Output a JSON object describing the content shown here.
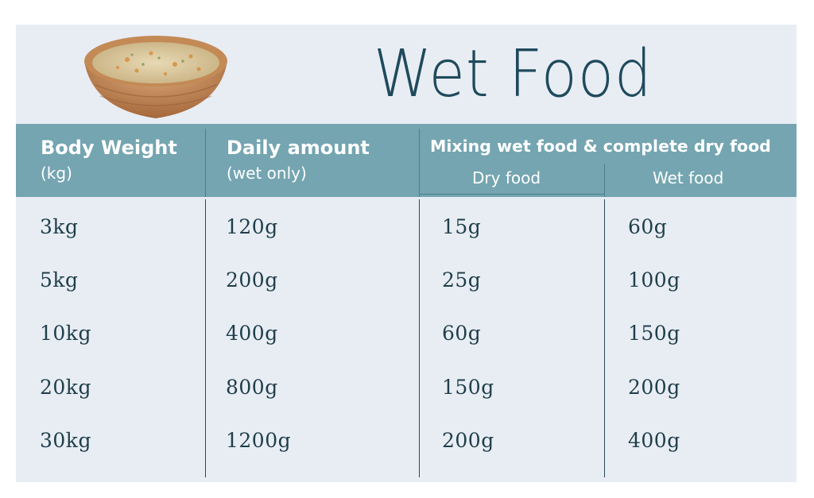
{
  "title": "Wet Food",
  "header": {
    "col1_title": "Body Weight",
    "col1_sub": "(kg)",
    "col2_title": "Daily amount",
    "col2_sub": "(wet only)",
    "mix_title": "Mixing wet food & complete dry food",
    "mix_sub1": "Dry food",
    "mix_sub2": "Wet food"
  },
  "rows": [
    {
      "weight": "3kg",
      "daily": "120g",
      "dry": "15g",
      "wet": "60g"
    },
    {
      "weight": "5kg",
      "daily": "200g",
      "dry": "25g",
      "wet": "100g"
    },
    {
      "weight": "10kg",
      "daily": "400g",
      "dry": "60g",
      "wet": "150g"
    },
    {
      "weight": "20kg",
      "daily": "800g",
      "dry": "150g",
      "wet": "200g"
    },
    {
      "weight": "30kg",
      "daily": "1200g",
      "dry": "200g",
      "wet": "400g"
    }
  ],
  "colors": {
    "header_bg": "#74a5b1",
    "card_bg": "#e8edf4",
    "title": "#1f4a5c",
    "cell_text": "#1f3e4a"
  }
}
